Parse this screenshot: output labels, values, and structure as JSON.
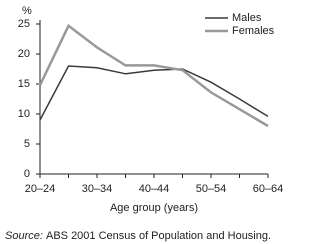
{
  "chart_data": {
    "type": "line",
    "y_unit": "%",
    "x_label": "Age group (years)",
    "source_label": "Source:",
    "source": "ABS 2001 Census of Population and Housing.",
    "categories": [
      "20–24",
      null,
      "30–34",
      null,
      "40–44",
      null,
      "50–54",
      null,
      "60–64"
    ],
    "series": [
      {
        "name": "Males",
        "color": "#3a3a3a",
        "values": [
          9.0,
          18.0,
          17.7,
          16.7,
          17.3,
          17.5,
          15.3,
          12.5,
          9.6
        ]
      },
      {
        "name": "Females",
        "color": "#999999",
        "values": [
          14.8,
          24.7,
          21.1,
          18.1,
          18.1,
          17.3,
          13.6,
          10.8,
          8.0
        ]
      }
    ],
    "ylim": [
      0,
      25
    ],
    "yticks": [
      0,
      5,
      10,
      15,
      20,
      25
    ],
    "legend": "top-right"
  }
}
